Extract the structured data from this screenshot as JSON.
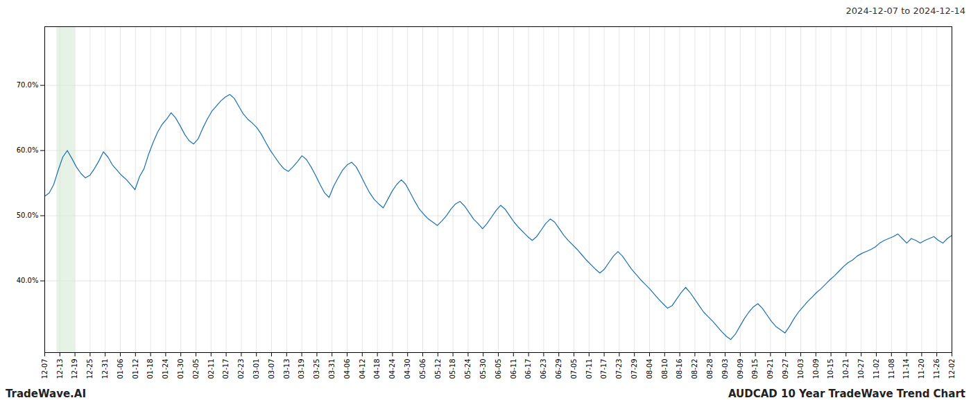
{
  "chart_data": {
    "type": "line",
    "title": "AUDCAD 10 Year TradeWave Trend Chart",
    "subtitle": "2024-12-07 to 2024-12-14",
    "annotations": [
      "TradeWave.AI"
    ],
    "color": "#1a6faf",
    "grid": true,
    "xlim": [
      0,
      60
    ],
    "ylim": [
      0.29,
      0.79
    ],
    "yticks": [
      {
        "value": 0.4,
        "label": "40.0%"
      },
      {
        "value": 0.5,
        "label": "50.0%"
      },
      {
        "value": 0.6,
        "label": "60.0%"
      },
      {
        "value": 0.7,
        "label": "70.0%"
      }
    ],
    "xticks": [
      {
        "value": 0,
        "label": "12-07"
      },
      {
        "value": 1,
        "label": "12-13"
      },
      {
        "value": 2,
        "label": "12-19"
      },
      {
        "value": 3,
        "label": "12-25"
      },
      {
        "value": 4,
        "label": "12-31"
      },
      {
        "value": 5,
        "label": "01-06"
      },
      {
        "value": 6,
        "label": "01-12"
      },
      {
        "value": 7,
        "label": "01-18"
      },
      {
        "value": 8,
        "label": "01-24"
      },
      {
        "value": 9,
        "label": "01-30"
      },
      {
        "value": 10,
        "label": "02-05"
      },
      {
        "value": 11,
        "label": "02-11"
      },
      {
        "value": 12,
        "label": "02-17"
      },
      {
        "value": 13,
        "label": "02-23"
      },
      {
        "value": 14,
        "label": "03-01"
      },
      {
        "value": 15,
        "label": "03-07"
      },
      {
        "value": 16,
        "label": "03-13"
      },
      {
        "value": 17,
        "label": "03-19"
      },
      {
        "value": 18,
        "label": "03-25"
      },
      {
        "value": 19,
        "label": "03-31"
      },
      {
        "value": 20,
        "label": "04-06"
      },
      {
        "value": 21,
        "label": "04-12"
      },
      {
        "value": 22,
        "label": "04-18"
      },
      {
        "value": 23,
        "label": "04-24"
      },
      {
        "value": 24,
        "label": "04-30"
      },
      {
        "value": 25,
        "label": "05-06"
      },
      {
        "value": 26,
        "label": "05-12"
      },
      {
        "value": 27,
        "label": "05-18"
      },
      {
        "value": 28,
        "label": "05-24"
      },
      {
        "value": 29,
        "label": "05-30"
      },
      {
        "value": 30,
        "label": "06-05"
      },
      {
        "value": 31,
        "label": "06-11"
      },
      {
        "value": 32,
        "label": "06-17"
      },
      {
        "value": 33,
        "label": "06-23"
      },
      {
        "value": 34,
        "label": "06-29"
      },
      {
        "value": 35,
        "label": "07-05"
      },
      {
        "value": 36,
        "label": "07-11"
      },
      {
        "value": 37,
        "label": "07-17"
      },
      {
        "value": 38,
        "label": "07-23"
      },
      {
        "value": 39,
        "label": "07-29"
      },
      {
        "value": 40,
        "label": "08-04"
      },
      {
        "value": 41,
        "label": "08-10"
      },
      {
        "value": 42,
        "label": "08-16"
      },
      {
        "value": 43,
        "label": "08-22"
      },
      {
        "value": 44,
        "label": "08-28"
      },
      {
        "value": 45,
        "label": "09-03"
      },
      {
        "value": 46,
        "label": "09-09"
      },
      {
        "value": 47,
        "label": "09-15"
      },
      {
        "value": 48,
        "label": "09-21"
      },
      {
        "value": 49,
        "label": "09-27"
      },
      {
        "value": 50,
        "label": "10-03"
      },
      {
        "value": 51,
        "label": "10-09"
      },
      {
        "value": 52,
        "label": "10-15"
      },
      {
        "value": 53,
        "label": "10-21"
      },
      {
        "value": 54,
        "label": "10-27"
      },
      {
        "value": 55,
        "label": "11-02"
      },
      {
        "value": 56,
        "label": "11-08"
      },
      {
        "value": 57,
        "label": "11-14"
      },
      {
        "value": 58,
        "label": "11-20"
      },
      {
        "value": 59,
        "label": "11-26"
      },
      {
        "value": 60,
        "label": "12-02"
      }
    ],
    "span": {
      "start": 0.8,
      "end": 2.0,
      "color": "#d4ead4"
    },
    "x": [
      0,
      0.2985,
      0.597,
      0.8955,
      1.194,
      1.4925,
      1.791,
      2.0896,
      2.3881,
      2.6866,
      2.9851,
      3.2836,
      3.5821,
      3.8806,
      4.1791,
      4.4776,
      4.7761,
      5.0746,
      5.3731,
      5.6716,
      5.9701,
      6.2687,
      6.5672,
      6.8657,
      7.1642,
      7.4627,
      7.7612,
      8.0597,
      8.3582,
      8.6567,
      8.9552,
      9.2537,
      9.5522,
      9.8507,
      10.1493,
      10.4478,
      10.7463,
      11.0448,
      11.3433,
      11.6418,
      11.9403,
      12.2388,
      12.5373,
      12.8358,
      13.1343,
      13.4328,
      13.7313,
      14.0299,
      14.3284,
      14.6269,
      14.9254,
      15.2239,
      15.5224,
      15.8209,
      16.1194,
      16.4179,
      16.7164,
      17.0149,
      17.3134,
      17.6119,
      17.9104,
      18.209,
      18.5075,
      18.806,
      19.1045,
      19.403,
      19.7015,
      20,
      20.2985,
      20.597,
      20.8955,
      21.194,
      21.4925,
      21.791,
      22.0896,
      22.3881,
      22.6866,
      22.9851,
      23.2836,
      23.5821,
      23.8806,
      24.1791,
      24.4776,
      24.7761,
      25.0746,
      25.3731,
      25.6716,
      25.9701,
      26.2687,
      26.5672,
      26.8657,
      27.1642,
      27.4627,
      27.7612,
      28.0597,
      28.3582,
      28.6567,
      28.9552,
      29.2537,
      29.5522,
      29.8507,
      30.1493,
      30.4478,
      30.7463,
      31.0448,
      31.3433,
      31.6418,
      31.9403,
      32.2388,
      32.5373,
      32.8358,
      33.1343,
      33.4328,
      33.7313,
      34.0299,
      34.3284,
      34.6269,
      34.9254,
      35.2239,
      35.5224,
      35.8209,
      36.1194,
      36.4179,
      36.7164,
      37.0149,
      37.3134,
      37.6119,
      37.9104,
      38.209,
      38.5075,
      38.806,
      39.1045,
      39.403,
      39.7015,
      40,
      40.2985,
      40.597,
      40.8955,
      41.194,
      41.4925,
      41.791,
      42.0896,
      42.3881,
      42.6866,
      42.9851,
      43.2836,
      43.5821,
      43.8806,
      44.1791,
      44.4776,
      44.7761,
      45.0746,
      45.3731,
      45.6716,
      45.9701,
      46.2687,
      46.5672,
      46.8657,
      47.1642,
      47.4627,
      47.7612,
      48.0597,
      48.3582,
      48.6567,
      48.9552,
      49.2537,
      49.5522,
      49.8507,
      50.1493,
      50.4478,
      50.7463,
      51.0448,
      51.3433,
      51.6418,
      51.9403,
      52.2388,
      52.5373,
      52.8358,
      53.1343,
      53.4328,
      53.7313,
      54.0299,
      54.3284,
      54.6269,
      54.9254,
      55.2239,
      55.5224,
      55.8209,
      56.1194,
      56.4179,
      56.7164,
      57.0149,
      57.3134,
      57.6119,
      57.9104,
      58.209,
      58.5075,
      58.806,
      59.1045,
      59.403,
      59.7015,
      60
    ],
    "values": [
      0.53,
      0.535,
      0.548,
      0.57,
      0.59,
      0.6,
      0.588,
      0.575,
      0.565,
      0.558,
      0.562,
      0.572,
      0.584,
      0.598,
      0.59,
      0.578,
      0.57,
      0.562,
      0.556,
      0.548,
      0.54,
      0.56,
      0.572,
      0.594,
      0.612,
      0.628,
      0.64,
      0.648,
      0.658,
      0.65,
      0.638,
      0.625,
      0.615,
      0.61,
      0.618,
      0.634,
      0.648,
      0.66,
      0.668,
      0.676,
      0.682,
      0.686,
      0.68,
      0.668,
      0.656,
      0.648,
      0.642,
      0.635,
      0.625,
      0.612,
      0.6,
      0.59,
      0.58,
      0.572,
      0.568,
      0.575,
      0.583,
      0.592,
      0.586,
      0.575,
      0.562,
      0.548,
      0.535,
      0.528,
      0.545,
      0.558,
      0.57,
      0.578,
      0.582,
      0.575,
      0.562,
      0.548,
      0.535,
      0.525,
      0.518,
      0.512,
      0.525,
      0.538,
      0.548,
      0.555,
      0.548,
      0.535,
      0.522,
      0.51,
      0.502,
      0.495,
      0.49,
      0.485,
      0.492,
      0.5,
      0.51,
      0.518,
      0.522,
      0.515,
      0.505,
      0.495,
      0.488,
      0.48,
      0.488,
      0.498,
      0.508,
      0.516,
      0.51,
      0.5,
      0.49,
      0.482,
      0.475,
      0.468,
      0.462,
      0.468,
      0.478,
      0.488,
      0.495,
      0.49,
      0.48,
      0.47,
      0.462,
      0.455,
      0.448,
      0.44,
      0.432,
      0.425,
      0.418,
      0.412,
      0.418,
      0.428,
      0.438,
      0.445,
      0.438,
      0.428,
      0.418,
      0.41,
      0.402,
      0.395,
      0.388,
      0.38,
      0.372,
      0.365,
      0.358,
      0.362,
      0.372,
      0.382,
      0.39,
      0.382,
      0.372,
      0.362,
      0.352,
      0.345,
      0.338,
      0.33,
      0.322,
      0.315,
      0.31,
      0.318,
      0.33,
      0.342,
      0.352,
      0.36,
      0.365,
      0.358,
      0.348,
      0.338,
      0.33,
      0.325,
      0.32,
      0.33,
      0.342,
      0.352,
      0.36,
      0.368,
      0.375,
      0.382,
      0.388,
      0.395,
      0.402,
      0.408,
      0.415,
      0.422,
      0.428,
      0.432,
      0.438,
      0.442,
      0.445,
      0.448,
      0.452,
      0.458,
      0.462,
      0.465,
      0.468,
      0.472,
      0.465,
      0.458,
      0.465,
      0.462,
      0.458,
      0.462,
      0.465,
      0.468,
      0.462,
      0.458,
      0.465,
      0.47
    ]
  }
}
